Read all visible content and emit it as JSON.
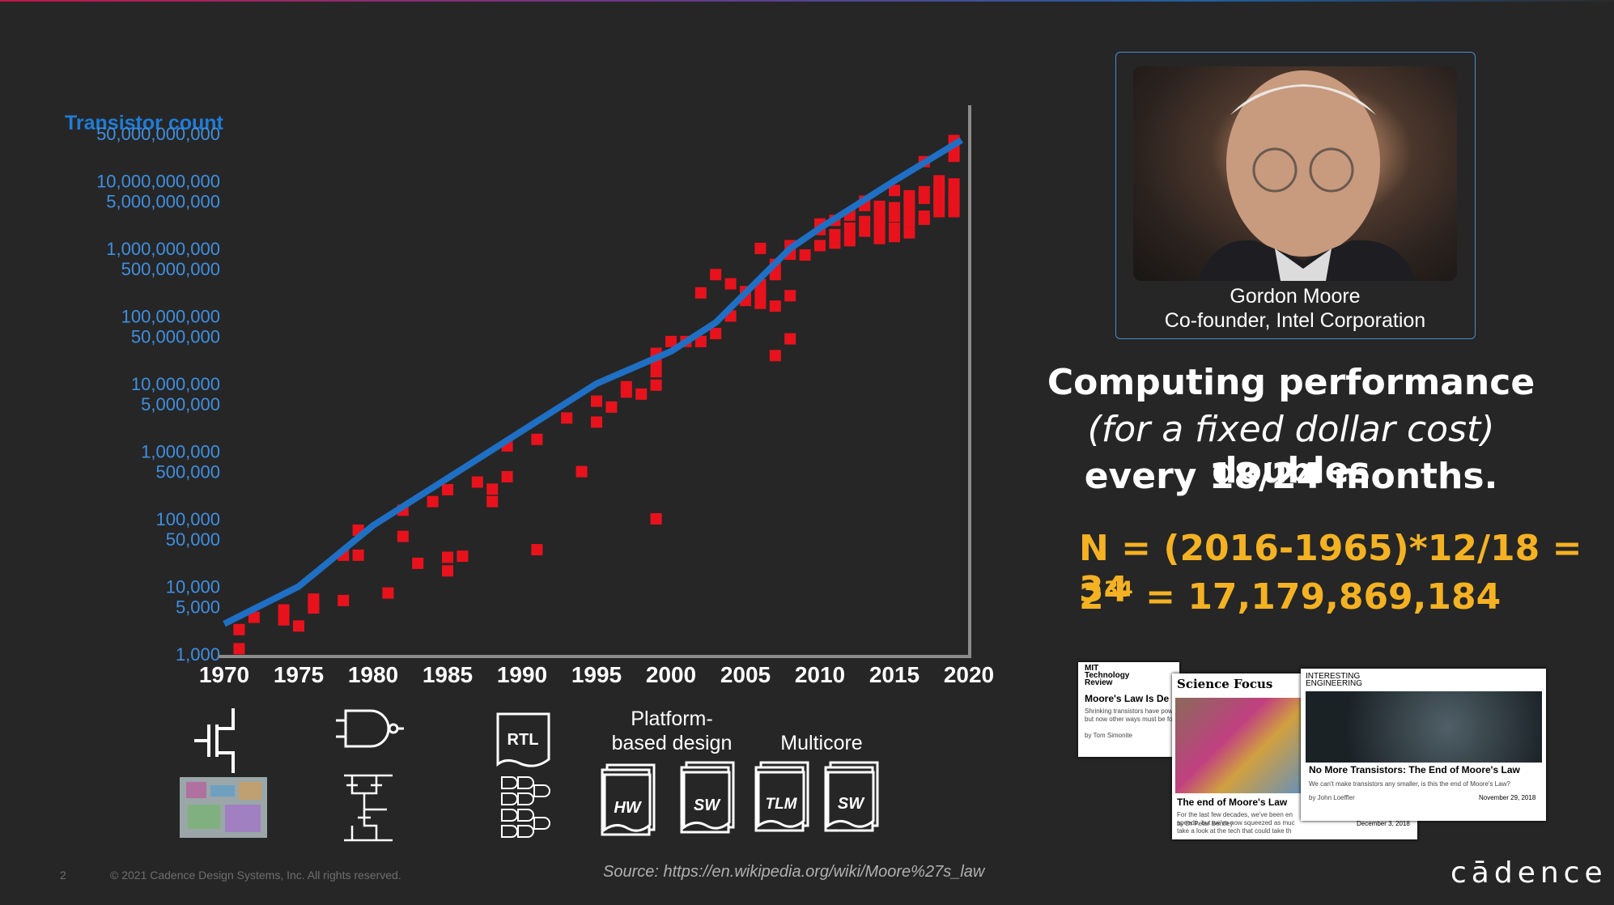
{
  "chart_data": {
    "type": "scatter",
    "ylabel": "Transistor count",
    "yscale": "log",
    "ylim": [
      700,
      80000000000
    ],
    "xlim": [
      1970,
      2020
    ],
    "y_ticks": [
      {
        "label": "50,000,000,000",
        "value": 50000000000
      },
      {
        "label": "10,000,000,000",
        "value": 10000000000
      },
      {
        "label": "5,000,000,000",
        "value": 5000000000
      },
      {
        "label": "1,000,000,000",
        "value": 1000000000
      },
      {
        "label": "500,000,000",
        "value": 500000000
      },
      {
        "label": "100,000,000",
        "value": 100000000
      },
      {
        "label": "50,000,000",
        "value": 50000000
      },
      {
        "label": "10,000,000",
        "value": 10000000
      },
      {
        "label": "5,000,000",
        "value": 5000000
      },
      {
        "label": "1,000,000",
        "value": 1000000
      },
      {
        "label": "500,000",
        "value": 500000
      },
      {
        "label": "100,000",
        "value": 100000
      },
      {
        "label": "50,000",
        "value": 50000
      },
      {
        "label": "10,000",
        "value": 10000
      },
      {
        "label": "5,000",
        "value": 5000
      },
      {
        "label": "1,000",
        "value": 1000
      }
    ],
    "x_ticks": [
      "1970",
      "1975",
      "1980",
      "1985",
      "1990",
      "1995",
      "2000",
      "2005",
      "2010",
      "2015",
      "2020"
    ],
    "trend": {
      "color": "#1f6fc4",
      "x": [
        1970,
        1975,
        1980,
        1985,
        1990,
        1995,
        2000,
        2003,
        2008,
        2010,
        2015,
        2019.5
      ],
      "y": [
        2800,
        10000,
        80000,
        400000,
        2000000,
        10000000,
        30000000,
        80000000,
        1000000000,
        2000000000,
        10000000000,
        40000000000
      ]
    },
    "points_color": "#e8121c",
    "points": [
      [
        1971,
        2300
      ],
      [
        1971,
        1200
      ],
      [
        1972,
        3500
      ],
      [
        1974,
        4500
      ],
      [
        1974,
        3200
      ],
      [
        1975,
        2600
      ],
      [
        1976,
        5500
      ],
      [
        1976,
        6500
      ],
      [
        1976,
        4800
      ],
      [
        1978,
        6200
      ],
      [
        1978,
        29000
      ],
      [
        1979,
        29000
      ],
      [
        1979,
        68000
      ],
      [
        1981,
        8000
      ],
      [
        1982,
        134000
      ],
      [
        1982,
        55000
      ],
      [
        1983,
        22000
      ],
      [
        1984,
        180000
      ],
      [
        1985,
        17000
      ],
      [
        1985,
        27000
      ],
      [
        1985,
        270000
      ],
      [
        1986,
        28000
      ],
      [
        1987,
        350000
      ],
      [
        1988,
        275000
      ],
      [
        1988,
        180000
      ],
      [
        1989,
        420000
      ],
      [
        1989,
        1200000
      ],
      [
        1991,
        1500000
      ],
      [
        1991,
        35000
      ],
      [
        1993,
        3100000
      ],
      [
        1994,
        500000
      ],
      [
        1995,
        5500000
      ],
      [
        1995,
        2700000
      ],
      [
        1996,
        4500000
      ],
      [
        1997,
        7500000
      ],
      [
        1997,
        9000000
      ],
      [
        1998,
        7000000
      ],
      [
        1999,
        9500000
      ],
      [
        1999,
        22000000
      ],
      [
        1999,
        15000000
      ],
      [
        1999,
        100000
      ],
      [
        1999,
        28000000
      ],
      [
        2000,
        42000000
      ],
      [
        2001,
        42000000
      ],
      [
        2002,
        42000000
      ],
      [
        2002,
        220000000
      ],
      [
        2003,
        410000000
      ],
      [
        2003,
        55000000
      ],
      [
        2004,
        100000000
      ],
      [
        2004,
        300000000
      ],
      [
        2005,
        170000000
      ],
      [
        2005,
        230000000
      ],
      [
        2006,
        291000000
      ],
      [
        2006,
        154000000
      ],
      [
        2006,
        1000000000
      ],
      [
        2006,
        240000000
      ],
      [
        2006,
        200000000
      ],
      [
        2007,
        410000000
      ],
      [
        2007,
        580000000
      ],
      [
        2007,
        140000000
      ],
      [
        2007,
        26000000
      ],
      [
        2008,
        820000000
      ],
      [
        2008,
        200000000
      ],
      [
        2008,
        1100000000
      ],
      [
        2008,
        46000000
      ],
      [
        2009,
        800000000
      ],
      [
        2010,
        2300000000
      ],
      [
        2010,
        1900000000
      ],
      [
        2010,
        1100000000
      ],
      [
        2011,
        1200000000
      ],
      [
        2011,
        2600000000
      ],
      [
        2011,
        1600000000
      ],
      [
        2012,
        3100000000
      ],
      [
        2012,
        2000000000
      ],
      [
        2012,
        1300000000
      ],
      [
        2012,
        1400000000
      ],
      [
        2013,
        2500000000
      ],
      [
        2013,
        4300000000
      ],
      [
        2013,
        1800000000
      ],
      [
        2013,
        5000000000
      ],
      [
        2014,
        1400000000
      ],
      [
        2014,
        2200000000
      ],
      [
        2014,
        3000000000
      ],
      [
        2014,
        1700000000
      ],
      [
        2014,
        4200000000
      ],
      [
        2014,
        2600000000
      ],
      [
        2015,
        7200000000
      ],
      [
        2015,
        3000000000
      ],
      [
        2015,
        1500000000
      ],
      [
        2015,
        4000000000
      ],
      [
        2015,
        2000000000
      ],
      [
        2016,
        2500000000
      ],
      [
        2016,
        6000000000
      ],
      [
        2016,
        3600000000
      ],
      [
        2016,
        4800000000
      ],
      [
        2016,
        1700000000
      ],
      [
        2017,
        5500000000
      ],
      [
        2017,
        3000000000
      ],
      [
        2017,
        19200000000
      ],
      [
        2017,
        6900000000
      ],
      [
        2017,
        2700000000
      ],
      [
        2018,
        4400000000
      ],
      [
        2018,
        10000000000
      ],
      [
        2018,
        7000000000
      ],
      [
        2018,
        5500000000
      ],
      [
        2018,
        3500000000
      ],
      [
        2018,
        8000000000
      ],
      [
        2019,
        39500000000
      ],
      [
        2019,
        7000000000
      ],
      [
        2019,
        9000000000
      ],
      [
        2019,
        4300000000
      ],
      [
        2019,
        5500000000
      ],
      [
        2019,
        23000000000
      ],
      [
        2019,
        30000000000
      ],
      [
        2019,
        3500000000
      ]
    ]
  },
  "right": {
    "person_name": "Gordon Moore",
    "person_title": "Co-founder, Intel Corporation",
    "headline_1": "Computing performance",
    "headline_2_italic": "(for a fixed dollar cost)",
    "headline_2_rest": " doubles",
    "headline_3": "every 18/24 months.",
    "formula_1": "N = (2016-1965)*12/18 = 34",
    "formula_2_base": "2",
    "formula_2_exp": "34",
    "formula_2_rest": " = 17,179,869,184"
  },
  "icons": {
    "platform_label_1": "Platform-",
    "platform_label_2": "based design",
    "multicore_label": "Multicore",
    "rtl": "RTL",
    "hw": "HW",
    "sw": "SW",
    "tlm": "TLM"
  },
  "articles": {
    "mit_head_1": "MIT",
    "mit_head_2": "Technology",
    "mit_head_3": "Review",
    "mit_title": "Moore's Law Is De",
    "mit_text": "Shrinking transistors have pow but now other ways must be fo",
    "mit_by": "by Tom Simonite",
    "sf_head": "Science Focus",
    "sf_title": "The end of Moore's Law",
    "sf_text": "For the last few decades, we've been en speeds, but we've now squeezed as muc take a look at the tech that could take th",
    "sf_by": "by Dr Peter Bentley",
    "sf_date": "December 3, 2018",
    "ie_head_1": "INTERESTING",
    "ie_head_2": "ENGINEERING",
    "ie_title": "No More Transistors: The End of Moore's Law",
    "ie_text": "We can't make transistors any smaller, is this the end of Moore's Law?",
    "ie_by": "by John Loeffler",
    "ie_date": "November 29, 2018"
  },
  "footer": {
    "page": "2",
    "copyright": "© 2021 Cadence Design Systems, Inc. All rights reserved.",
    "source": "Source: https://en.wikipedia.org/wiki/Moore%27s_law",
    "logo": "cādence"
  }
}
